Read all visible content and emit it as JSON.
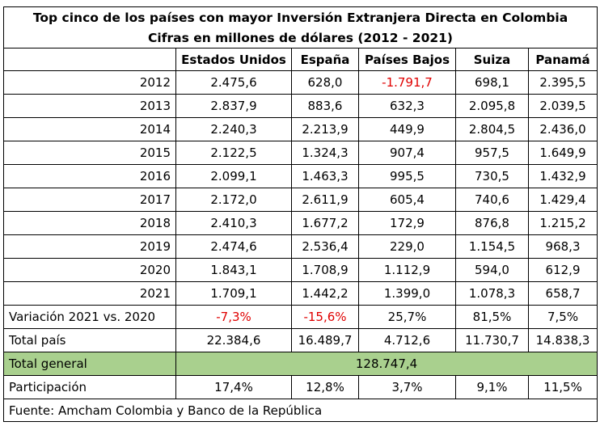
{
  "title": "Top cinco de los países con mayor Inversión Extranjera Directa en Colombia",
  "subtitle": "Cifras en millones de dólares (2012 - 2021)",
  "columns": [
    "Estados Unidos",
    "España",
    "Países Bajos",
    "Suiza",
    "Panamá"
  ],
  "rows": [
    {
      "year": "2012",
      "values": [
        "2.475,6",
        "628,0",
        "-1.791,7",
        "698,1",
        "2.395,5"
      ],
      "neg": [
        false,
        false,
        true,
        false,
        false
      ]
    },
    {
      "year": "2013",
      "values": [
        "2.837,9",
        "883,6",
        "632,3",
        "2.095,8",
        "2.039,5"
      ],
      "neg": [
        false,
        false,
        false,
        false,
        false
      ]
    },
    {
      "year": "2014",
      "values": [
        "2.240,3",
        "2.213,9",
        "449,9",
        "2.804,5",
        "2.436,0"
      ],
      "neg": [
        false,
        false,
        false,
        false,
        false
      ]
    },
    {
      "year": "2015",
      "values": [
        "2.122,5",
        "1.324,3",
        "907,4",
        "957,5",
        "1.649,9"
      ],
      "neg": [
        false,
        false,
        false,
        false,
        false
      ]
    },
    {
      "year": "2016",
      "values": [
        "2.099,1",
        "1.463,3",
        "995,5",
        "730,5",
        "1.432,9"
      ],
      "neg": [
        false,
        false,
        false,
        false,
        false
      ]
    },
    {
      "year": "2017",
      "values": [
        "2.172,0",
        "2.611,9",
        "605,4",
        "740,6",
        "1.429,4"
      ],
      "neg": [
        false,
        false,
        false,
        false,
        false
      ]
    },
    {
      "year": "2018",
      "values": [
        "2.410,3",
        "1.677,2",
        "172,9",
        "876,8",
        "1.215,2"
      ],
      "neg": [
        false,
        false,
        false,
        false,
        false
      ]
    },
    {
      "year": "2019",
      "values": [
        "2.474,6",
        "2.536,4",
        "229,0",
        "1.154,5",
        "968,3"
      ],
      "neg": [
        false,
        false,
        false,
        false,
        false
      ]
    },
    {
      "year": "2020",
      "values": [
        "1.843,1",
        "1.708,9",
        "1.112,9",
        "594,0",
        "612,9"
      ],
      "neg": [
        false,
        false,
        false,
        false,
        false
      ]
    },
    {
      "year": "2021",
      "values": [
        "1.709,1",
        "1.442,2",
        "1.399,0",
        "1.078,3",
        "658,7"
      ],
      "neg": [
        false,
        false,
        false,
        false,
        false
      ]
    }
  ],
  "variation": {
    "label": "Variación 2021 vs. 2020",
    "values": [
      "-7,3%",
      "-15,6%",
      "25,7%",
      "81,5%",
      "7,5%"
    ],
    "neg": [
      true,
      true,
      false,
      false,
      false
    ]
  },
  "total_pais": {
    "label": "Total país",
    "values": [
      "22.384,6",
      "16.489,7",
      "4.712,6",
      "11.730,7",
      "14.838,3"
    ]
  },
  "total_general": {
    "label": "Total general",
    "value": "128.747,4"
  },
  "participacion": {
    "label": "Participación",
    "values": [
      "17,4%",
      "12,8%",
      "3,7%",
      "9,1%",
      "11,5%"
    ]
  },
  "source": "Fuente: Amcham Colombia y Banco de la República",
  "colors": {
    "negative": "#e00000",
    "total_general_bg": "#a9d08e"
  }
}
